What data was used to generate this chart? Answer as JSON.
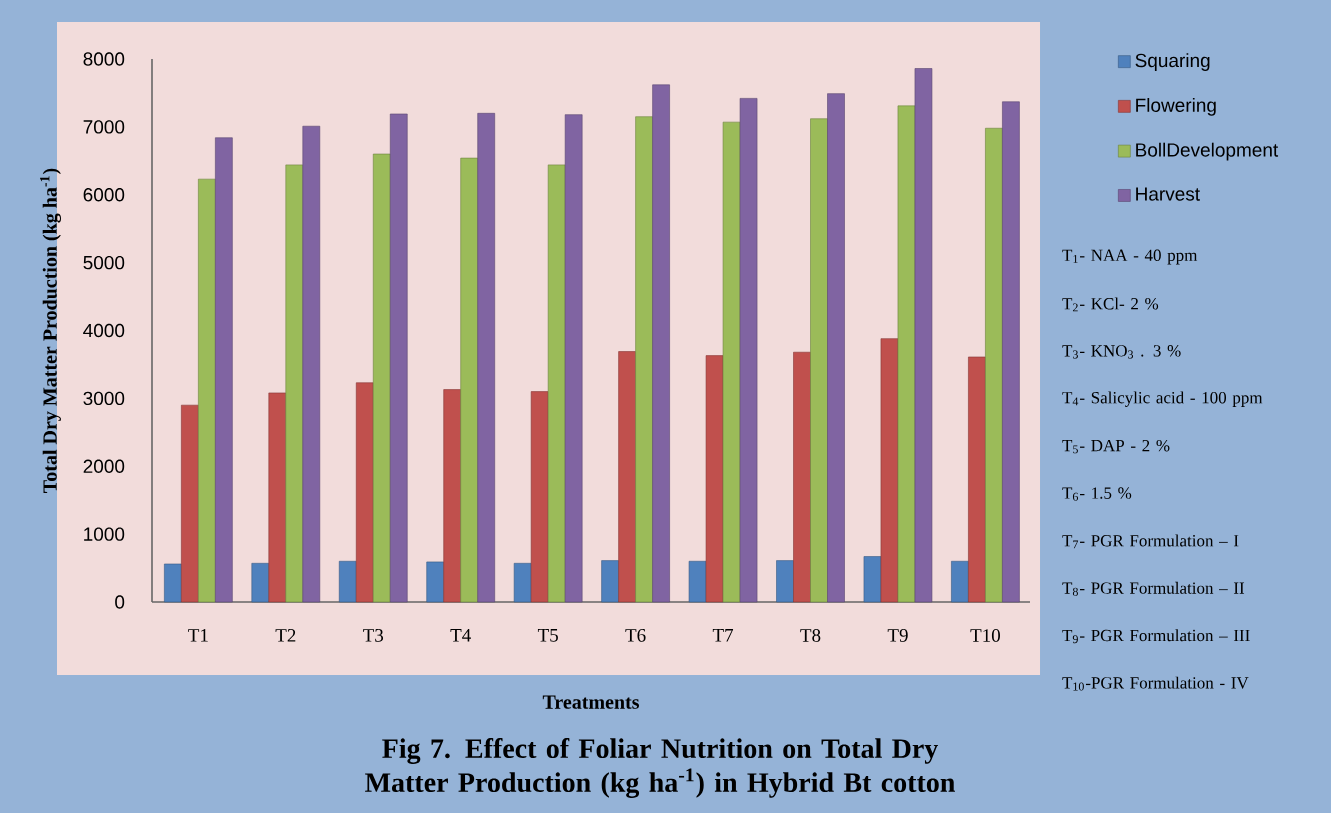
{
  "chart_data": {
    "type": "bar",
    "title": "Fig 7. Effect of Foliar Nutrition on Total Dry Matter Production (kg ha$^{-1}$) in Hybrid Bt cotton",
    "xlabel": "Treatments",
    "ylabel": "Total Dry Matter Production (kg ha$^{-1}$)",
    "categories": [
      "T1",
      "T2",
      "T3",
      "T4",
      "T5",
      "T6",
      "T7",
      "T8",
      "T9",
      "T10"
    ],
    "series": [
      {
        "name": "Squaring",
        "color": "#4f81bd",
        "values": [
          560,
          570,
          600,
          590,
          570,
          610,
          600,
          610,
          670,
          600
        ]
      },
      {
        "name": "Flowering",
        "color": "#c0504d",
        "values": [
          2900,
          3080,
          3230,
          3130,
          3100,
          3690,
          3630,
          3680,
          3880,
          3610
        ]
      },
      {
        "name": "BollDevelopment",
        "color": "#9bbb59",
        "values": [
          6230,
          6440,
          6600,
          6540,
          6440,
          7150,
          7070,
          7120,
          7310,
          6980
        ]
      },
      {
        "name": "Harvest",
        "color": "#8064a2",
        "values": [
          6840,
          7010,
          7190,
          7200,
          7180,
          7620,
          7420,
          7490,
          7860,
          7370
        ]
      }
    ],
    "ylim": [
      0,
      8000
    ],
    "yticks": [
      0,
      1000,
      2000,
      3000,
      4000,
      5000,
      6000,
      7000,
      8000
    ],
    "legend": "right",
    "annotations": [
      "T$_{1}$- NAA - 40 ppm",
      "T$_{2}$- KCl-  2 %",
      "T$_{3}$- KNO$_{3}$ . 3 %",
      "T$_{4}$- Salicylic acid   - 100 ppm",
      "T$_{5}$- DAP - 2 %",
      "T$_{6}$- 1.5 %",
      "T$_{7}$- PGR Formulation – I",
      "T$_{8}$- PGR Formulation – II",
      "T$_{9}$- PGR Formulation – III",
      "T$_{10}$-PGR Formulation - IV"
    ]
  }
}
